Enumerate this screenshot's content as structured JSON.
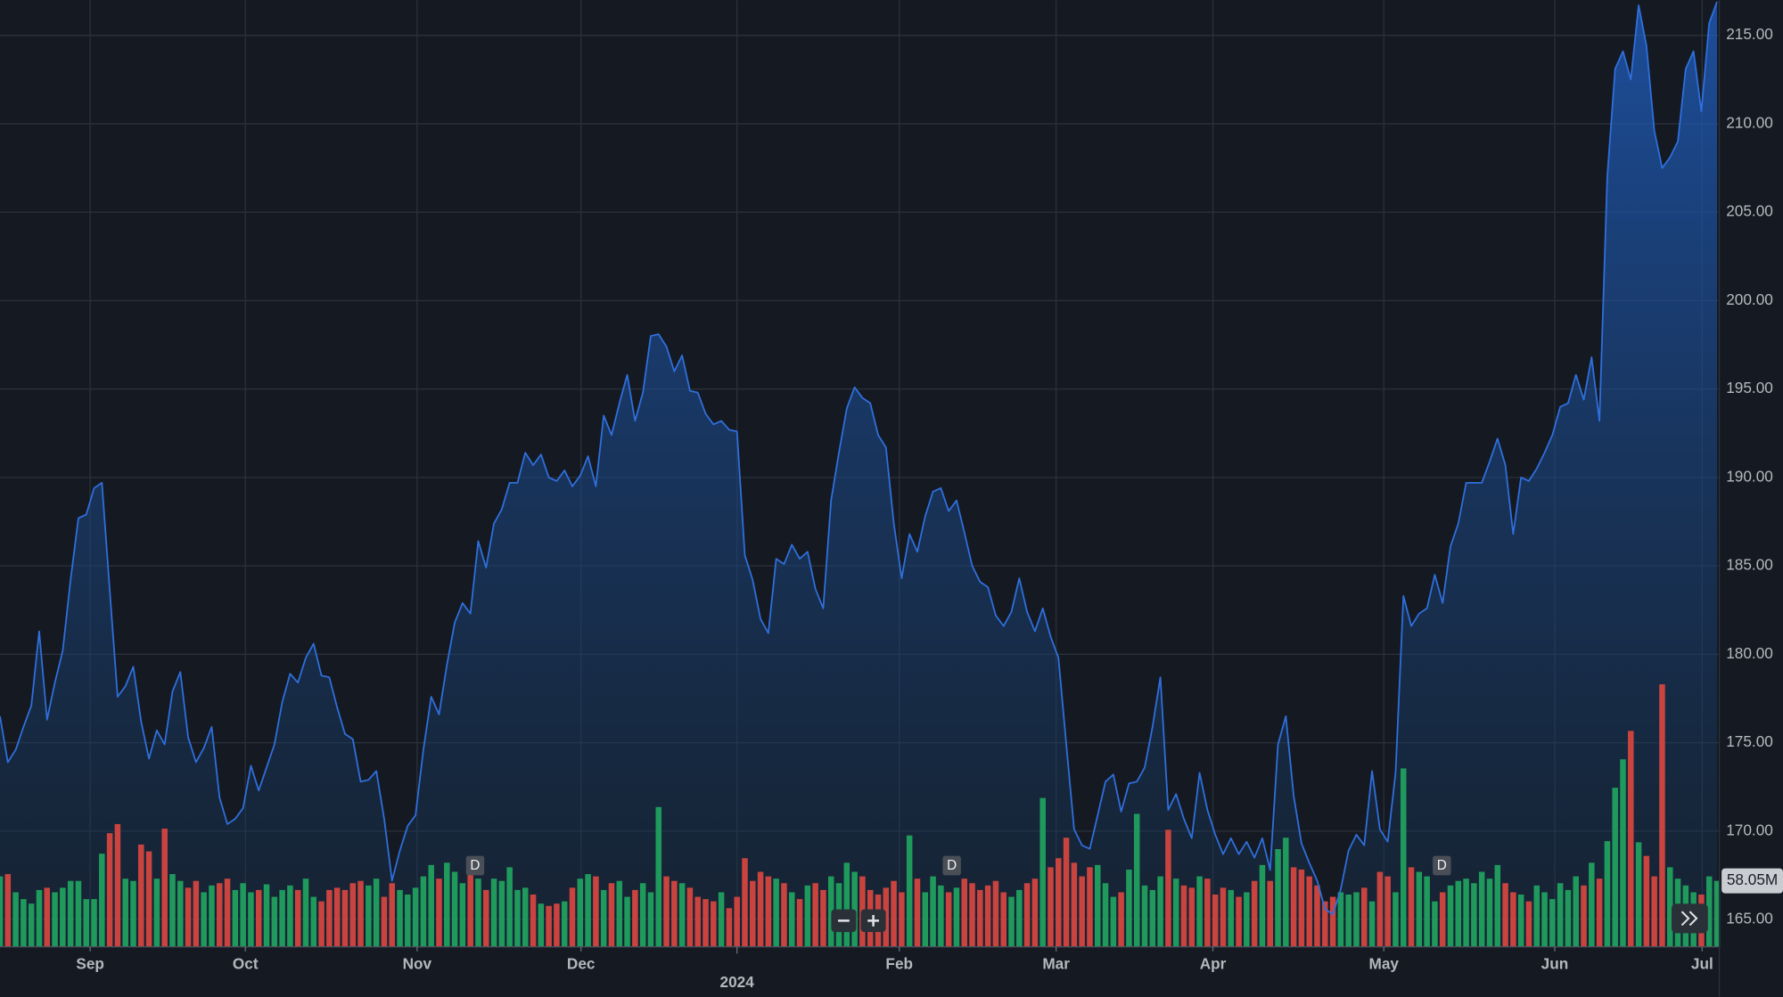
{
  "chart_data": {
    "type": "area",
    "color": "#2f6fdd",
    "grid": true,
    "ylim": [
      163.46,
      216.99
    ],
    "yticks": [
      {
        "value": 165,
        "label": "165.00"
      },
      {
        "value": 170,
        "label": "170.00"
      },
      {
        "value": 175,
        "label": "175.00"
      },
      {
        "value": 180,
        "label": "180.00"
      },
      {
        "value": 185,
        "label": "185.00"
      },
      {
        "value": 190,
        "label": "190.00"
      },
      {
        "value": 195,
        "label": "195.00"
      },
      {
        "value": 200,
        "label": "200.00"
      },
      {
        "value": 205,
        "label": "205.00"
      },
      {
        "value": 210,
        "label": "210.00"
      },
      {
        "value": 215,
        "label": "215.00"
      }
    ],
    "xticks": [
      {
        "value": 11.5,
        "label": "Sep"
      },
      {
        "value": 31.3,
        "label": "Oct"
      },
      {
        "value": 53.2,
        "label": "Nov"
      },
      {
        "value": 74.1,
        "label": "Dec"
      },
      {
        "value": 94,
        "label": "2024"
      },
      {
        "value": 114.7,
        "label": "Feb"
      },
      {
        "value": 134.7,
        "label": "Mar"
      },
      {
        "value": 154.7,
        "label": "Apr"
      },
      {
        "value": 176.5,
        "label": "May"
      },
      {
        "value": 198.3,
        "label": "Jun"
      },
      {
        "value": 217.1,
        "label": "Jul"
      }
    ],
    "values": [
      176.5,
      173.9,
      174.6,
      175.9,
      177.1,
      181.3,
      176.3,
      178.4,
      180.2,
      184.2,
      187.7,
      187.9,
      189.4,
      189.7,
      183.6,
      177.6,
      178.2,
      179.3,
      176.2,
      174.1,
      175.7,
      174.9,
      177.9,
      179.0,
      175.3,
      173.9,
      174.7,
      175.9,
      171.9,
      170.4,
      170.7,
      171.3,
      173.7,
      172.3,
      173.6,
      174.9,
      177.3,
      178.9,
      178.4,
      179.8,
      180.6,
      178.8,
      178.7,
      177.0,
      175.5,
      175.2,
      172.8,
      172.9,
      173.4,
      170.7,
      167.2,
      168.9,
      170.3,
      170.9,
      174.6,
      177.6,
      176.6,
      179.4,
      181.8,
      182.9,
      182.3,
      186.4,
      184.9,
      187.4,
      188.2,
      189.7,
      189.7,
      191.4,
      190.7,
      191.3,
      190.0,
      189.8,
      190.4,
      189.5,
      190.1,
      191.2,
      189.5,
      193.5,
      192.4,
      194.2,
      195.8,
      193.2,
      194.8,
      198.0,
      198.1,
      197.4,
      196.0,
      196.9,
      194.9,
      194.8,
      193.6,
      193.0,
      193.2,
      192.7,
      192.6,
      185.6,
      184.2,
      182.0,
      181.2,
      185.4,
      185.1,
      186.2,
      185.4,
      185.8,
      183.7,
      182.6,
      188.7,
      191.4,
      193.9,
      195.1,
      194.5,
      194.2,
      192.4,
      191.7,
      187.4,
      184.3,
      186.8,
      185.8,
      187.8,
      189.2,
      189.4,
      188.1,
      188.7,
      186.9,
      185.0,
      184.1,
      183.8,
      182.2,
      181.6,
      182.4,
      184.3,
      182.4,
      181.3,
      182.6,
      181.0,
      179.8,
      174.9,
      170.1,
      169.2,
      169.0,
      170.9,
      172.8,
      173.2,
      171.1,
      172.7,
      172.8,
      173.6,
      175.9,
      178.7,
      171.2,
      172.1,
      170.7,
      169.6,
      173.3,
      171.2,
      169.8,
      168.7,
      169.6,
      168.7,
      169.4,
      168.5,
      169.6,
      167.8,
      174.9,
      176.5,
      172.0,
      169.3,
      168.2,
      167.2,
      165.6,
      165.3,
      166.7,
      168.9,
      169.8,
      169.2,
      173.4,
      170.1,
      169.4,
      173.3,
      183.3,
      181.6,
      182.3,
      182.6,
      184.5,
      182.9,
      186.1,
      187.4,
      189.7,
      189.7,
      189.7,
      190.9,
      192.2,
      190.7,
      186.8,
      190.0,
      189.8,
      190.5,
      191.4,
      192.4,
      194.0,
      194.2,
      195.8,
      194.4,
      196.8,
      193.2,
      207.0,
      213.1,
      214.1,
      212.5,
      216.7,
      214.4,
      209.6,
      207.5,
      208.1,
      209.0,
      213.1,
      214.1,
      210.7,
      215.7,
      216.9
    ],
    "volume": {
      "type": "bar",
      "up_color": "#1f9a5c",
      "down_color": "#c9443f",
      "last_label": "58.05M",
      "values": [
        62,
        64,
        48,
        42,
        38,
        50,
        52,
        48,
        52,
        58,
        58,
        42,
        42,
        82,
        100,
        108,
        60,
        58,
        90,
        84,
        60,
        104,
        64,
        58,
        52,
        58,
        48,
        54,
        56,
        60,
        50,
        56,
        48,
        50,
        55,
        44,
        50,
        54,
        50,
        60,
        44,
        40,
        50,
        52,
        50,
        56,
        58,
        54,
        60,
        44,
        56,
        50,
        46,
        52,
        62,
        72,
        60,
        74,
        66,
        56,
        70,
        60,
        50,
        60,
        58,
        70,
        50,
        52,
        46,
        38,
        36,
        38,
        40,
        52,
        60,
        64,
        62,
        50,
        56,
        58,
        44,
        50,
        56,
        48,
        123,
        62,
        58,
        56,
        52,
        44,
        42,
        40,
        48,
        34,
        44,
        78,
        58,
        66,
        62,
        60,
        56,
        48,
        42,
        54,
        56,
        50,
        62,
        56,
        74,
        66,
        62,
        50,
        46,
        52,
        58,
        48,
        98,
        60,
        48,
        62,
        54,
        48,
        52,
        60,
        56,
        50,
        54,
        58,
        48,
        44,
        50,
        56,
        60,
        131,
        70,
        78,
        96,
        74,
        62,
        70,
        72,
        56,
        44,
        48,
        68,
        117,
        54,
        50,
        62,
        103,
        60,
        54,
        52,
        62,
        60,
        46,
        52,
        50,
        44,
        48,
        58,
        72,
        58,
        86,
        96,
        70,
        68,
        62,
        54,
        40,
        44,
        48,
        46,
        48,
        52,
        40,
        66,
        62,
        48,
        157,
        70,
        66,
        62,
        40,
        48,
        54,
        58,
        60,
        56,
        66,
        60,
        72,
        56,
        48,
        46,
        40,
        54,
        48,
        42,
        56,
        50,
        62,
        54,
        74,
        60,
        93,
        140,
        165,
        190,
        92,
        80,
        62,
        231,
        70,
        60,
        54,
        48,
        46,
        62,
        58.05
      ]
    },
    "markers": [
      {
        "label": "D",
        "x": 60.6
      },
      {
        "label": "D",
        "x": 121.4
      },
      {
        "label": "D",
        "x": 183.9
      }
    ]
  }
}
